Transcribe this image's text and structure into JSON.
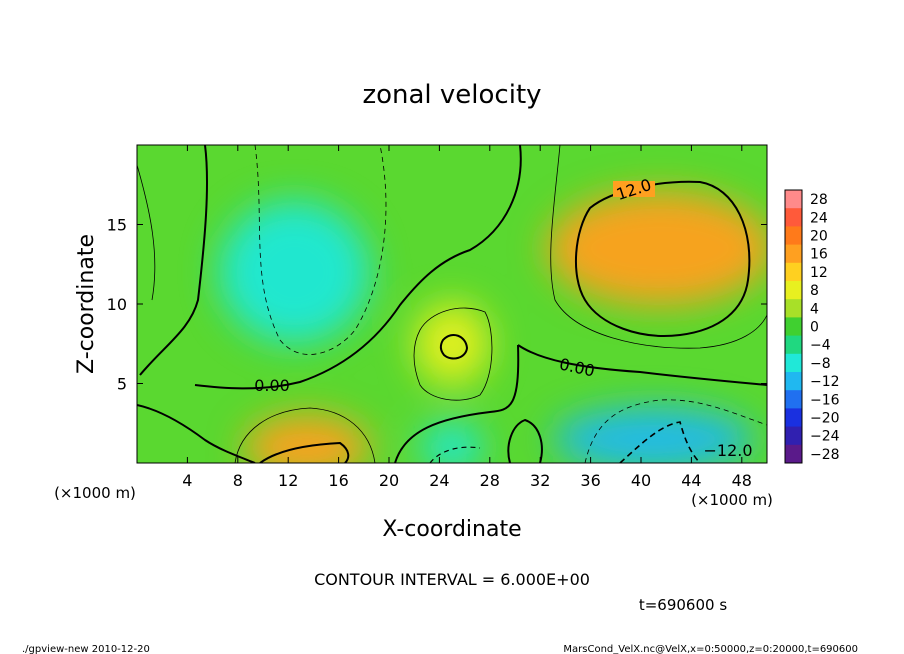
{
  "chart_data": {
    "type": "heatmap",
    "title": "zonal velocity",
    "xlabel": "X-coordinate",
    "ylabel": "Z-coordinate",
    "x_unit": "(×1000 m)",
    "z_unit": "(×1000 m)",
    "xlim": [
      0,
      50
    ],
    "zlim": [
      0,
      20
    ],
    "x_ticks": [
      "4",
      "8",
      "12",
      "16",
      "20",
      "24",
      "28",
      "32",
      "36",
      "40",
      "44",
      "48"
    ],
    "z_ticks": [
      "5",
      "10",
      "15"
    ],
    "colorbar_labels": [
      "28",
      "24",
      "20",
      "16",
      "12",
      "8",
      "4",
      "0",
      "−4",
      "−8",
      "−12",
      "−16",
      "−20",
      "−24",
      "−28"
    ],
    "colorbar_colors": [
      "#ff8a8a",
      "#ff5a3a",
      "#ff7a1a",
      "#ffa020",
      "#ffd020",
      "#e8f020",
      "#a8e028",
      "#40d030",
      "#20d880",
      "#20e8d8",
      "#20b8f0",
      "#2070f0",
      "#1a30e0",
      "#3020b0",
      "#5a1a8a"
    ],
    "contour_labels": [
      "12.0",
      "0.00",
      "0.00",
      "−12.0"
    ],
    "contour_interval": "CONTOUR INTERVAL = 6.000E+00",
    "time": "t=690600 s",
    "features": [
      {
        "x": 41.5,
        "z": 13.5,
        "value": 14
      },
      {
        "x": 13.5,
        "z": 1.0,
        "value": 14
      },
      {
        "x": 25.0,
        "z": 7.5,
        "value": 9
      },
      {
        "x": 12.5,
        "z": 12.0,
        "value": -9
      },
      {
        "x": 41.0,
        "z": 1.5,
        "value": -12
      },
      {
        "x": 25.0,
        "z": 1.0,
        "value": -7
      }
    ]
  },
  "footer": {
    "left": "./gpview-new   2010-12-20",
    "right": "MarsCond_VelX.nc@VelX,x=0:50000,z=0:20000,t=690600"
  }
}
